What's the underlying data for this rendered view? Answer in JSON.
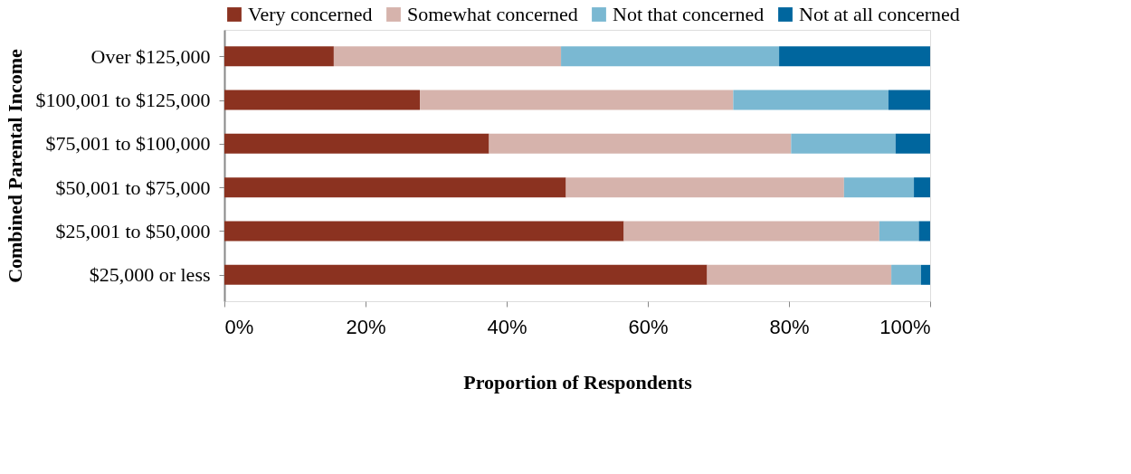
{
  "chart_data": {
    "type": "bar",
    "orientation": "horizontal",
    "stacked": true,
    "xlabel": "Proportion of Respondents",
    "ylabel": "Combined Parental Income",
    "categories": [
      "Over $125,000",
      "$100,001 to $125,000",
      "$75,001 to $100,000",
      "$50,001 to $75,000",
      "$25,001 to $50,000",
      "$25,000 or less"
    ],
    "series": [
      {
        "name": "Very concerned",
        "color": "#8b3220",
        "values": [
          15.5,
          27.7,
          37.5,
          48.4,
          56.6,
          68.4
        ]
      },
      {
        "name": "Somewhat concerned",
        "color": "#d6b3ac",
        "values": [
          32.2,
          44.4,
          42.8,
          39.4,
          36.2,
          26.1
        ]
      },
      {
        "name": "Not that concerned",
        "color": "#7ab8d2",
        "values": [
          30.9,
          22.0,
          14.8,
          9.9,
          5.6,
          4.2
        ]
      },
      {
        "name": "Not at all concerned",
        "color": "#00669e",
        "values": [
          21.4,
          5.9,
          4.9,
          2.3,
          1.6,
          1.3
        ]
      }
    ],
    "xlim": [
      0,
      100
    ],
    "xticks": [
      {
        "value": 0,
        "label": "0%"
      },
      {
        "value": 20,
        "label": "20%"
      },
      {
        "value": 40,
        "label": "40%"
      },
      {
        "value": 60,
        "label": "60%"
      },
      {
        "value": 80,
        "label": "80%"
      },
      {
        "value": 100,
        "label": "100%"
      }
    ],
    "grid": false,
    "legend": "top"
  }
}
